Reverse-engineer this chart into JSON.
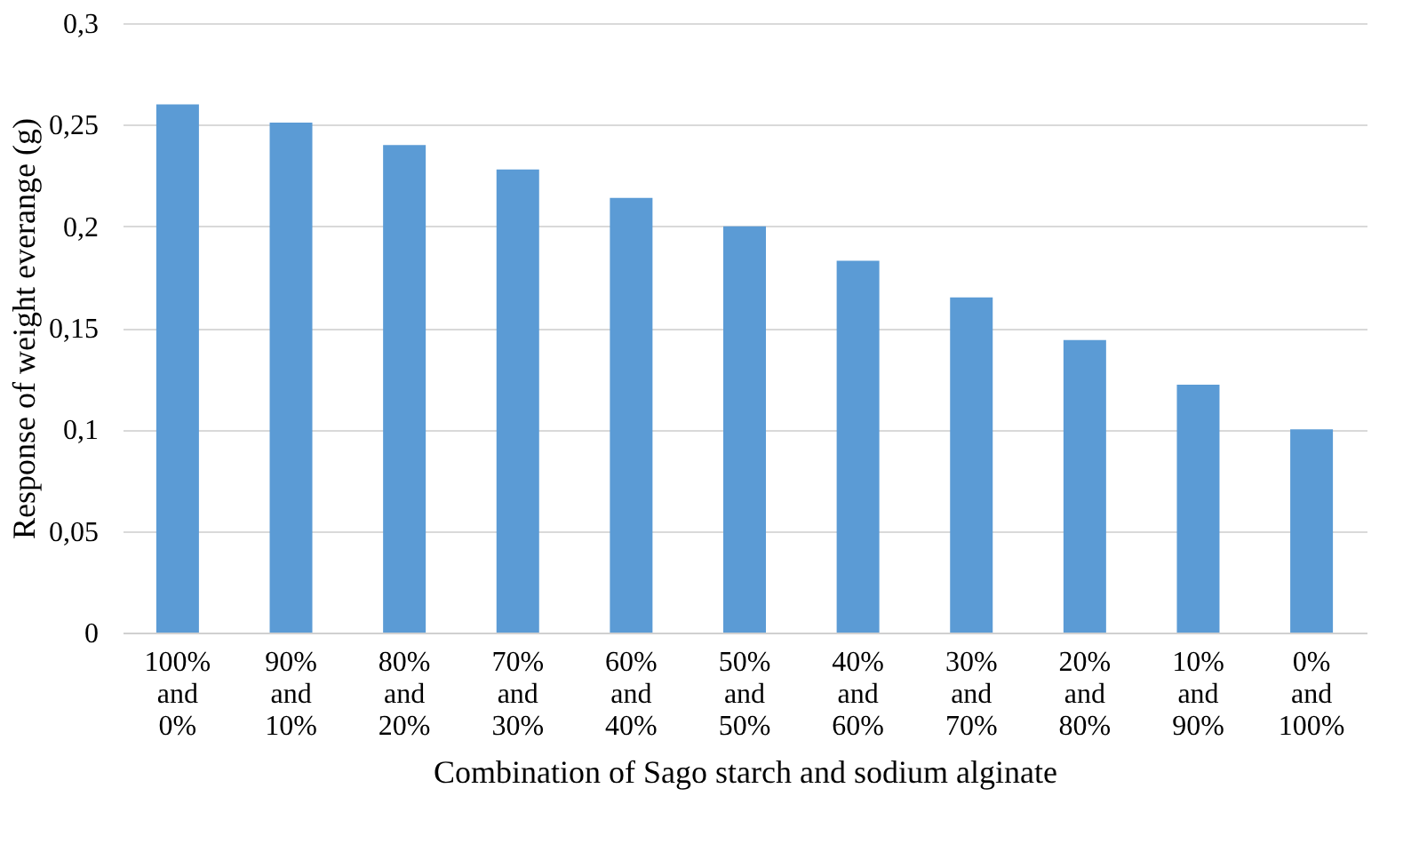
{
  "chart_data": {
    "type": "bar",
    "xlabel": "Combination of Sago starch and sodium alginate",
    "ylabel": "Response of weight everange (g)",
    "categories": [
      "100% and 0%",
      "90% and 10%",
      "80% and 20%",
      "70% and 30%",
      "60% and 40%",
      "50% and 50%",
      "40% and 60%",
      "30% and 70%",
      "20% and 80%",
      "10% and 90%",
      "0% and 100%"
    ],
    "values": [
      0.26,
      0.251,
      0.24,
      0.228,
      0.214,
      0.2,
      0.183,
      0.165,
      0.144,
      0.122,
      0.1
    ],
    "color": "#5b9bd5",
    "ylim": [
      0,
      0.3
    ],
    "yticks": [
      0,
      {
        "value": 0.05,
        "label": "0,05"
      },
      {
        "value": 0.1,
        "label": "0,1"
      },
      {
        "value": 0.15,
        "label": "0,15"
      },
      {
        "value": 0.2,
        "label": "0,2"
      },
      {
        "value": 0.25,
        "label": "0,25"
      },
      {
        "value": 0.3,
        "label": "0,3"
      }
    ],
    "grid": "y"
  }
}
